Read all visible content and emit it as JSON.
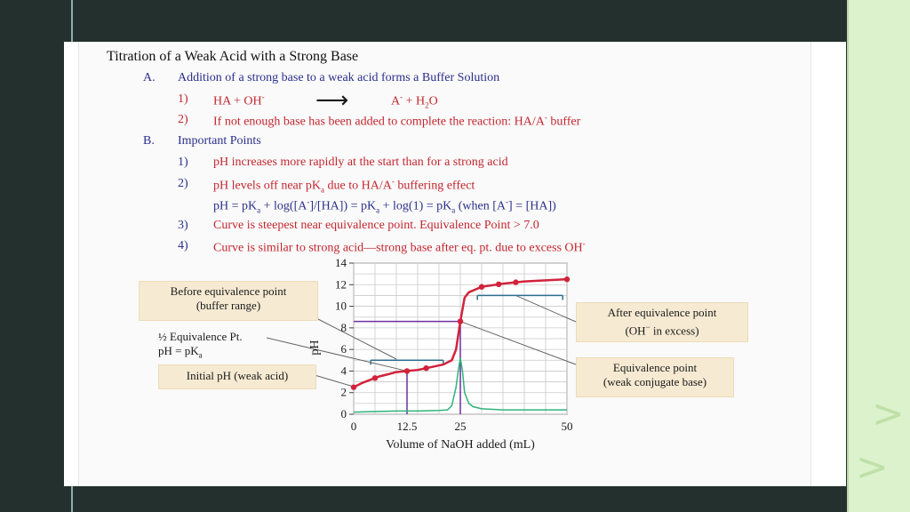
{
  "slide": {
    "accent_dark": "#24302e",
    "accent_light": "#dcf2cc"
  },
  "document": {
    "title": "Titration of a Weak Acid with a Strong Base",
    "section_a": {
      "marker": "A.",
      "heading": "Addition of a strong base to a weak acid forms a Buffer Solution",
      "item1": {
        "num": "1)",
        "lhs": "HA  +  OH",
        "lhs_sup": "-",
        "arrow": "⟶",
        "rhs": "A",
        "rhs_sup": "-",
        "rhs_tail": " +  H",
        "rhs_sub": "2",
        "rhs_end": "O"
      },
      "item2": {
        "num": "2)",
        "text": "If not enough base has been added to complete the reaction: HA/A",
        "sup": "-",
        "tail": " buffer"
      }
    },
    "section_b": {
      "marker": "B.",
      "heading": "Important Points",
      "item1": {
        "num": "1)",
        "text": "pH increases more rapidly at the start than for a strong acid"
      },
      "item2": {
        "num": "2)",
        "text_a": "pH levels off near pK",
        "sub_a": "a",
        "text_b": " due to HA/A",
        "sup_b": "-",
        "text_c": " buffering effect"
      },
      "equation": {
        "p1": "pH = pK",
        "s1": "a",
        "p2": " + log([A",
        "sup2": "-",
        "p3": "]/[HA])  =  pK",
        "s3": "a",
        "p4": " + log(1)  =  pK",
        "s4": "a",
        "p5": "  (when [A",
        "sup5": "-",
        "p6": "] = [HA])"
      },
      "item3": {
        "num": "3)",
        "text": "Curve is steepest near equivalence point.  Equivalence Point > 7.0"
      },
      "item4": {
        "num": "4)",
        "text": "Curve is similar to strong acid—strong base after eq. pt. due to excess OH",
        "sup": "-"
      }
    }
  },
  "annotations": {
    "before_eq_line1": "Before equivalence point",
    "before_eq_line2": "(buffer range)",
    "half_eq_line1": "½ Equivalence Pt.",
    "half_eq_line2": "pH = pK",
    "half_eq_sub": "a",
    "initial_ph": "Initial pH (weak acid)",
    "after_eq_line1": "After equivalence point",
    "after_eq_line2": "(OH",
    "after_eq_sup": "−",
    "after_eq_line2_tail": " in excess)",
    "eq_point_line1": "Equivalence point",
    "eq_point_line2": "(weak conjugate base)"
  },
  "chart_data": {
    "type": "line",
    "xlabel": "Volume of NaOH added (mL)",
    "ylabel": "pH",
    "xlim": [
      0,
      50
    ],
    "ylim": [
      0,
      14
    ],
    "x_ticks": [
      "0",
      "12.5",
      "25",
      "50"
    ],
    "x_tick_values": [
      0,
      12.5,
      25,
      50
    ],
    "y_ticks": [
      "0",
      "2",
      "4",
      "6",
      "8",
      "10",
      "12",
      "14"
    ],
    "y_tick_values": [
      0,
      2,
      4,
      6,
      8,
      10,
      12,
      14
    ],
    "grid": true,
    "series": [
      {
        "values_x": [
          0,
          2,
          4,
          6,
          8,
          10,
          12.5,
          15,
          18,
          21,
          23,
          24,
          25,
          26,
          27,
          30,
          35,
          40,
          45,
          50
        ],
        "values_y": [
          2.5,
          2.9,
          3.2,
          3.5,
          3.7,
          3.9,
          4.0,
          4.1,
          4.35,
          4.6,
          5.0,
          6.0,
          8.6,
          10.8,
          11.3,
          11.8,
          12.1,
          12.3,
          12.4,
          12.5
        ],
        "marker_points_x": [
          0,
          5,
          12.5,
          17,
          25,
          30,
          34,
          38,
          50
        ],
        "color": "#d2233c"
      },
      {
        "values_x": [
          0,
          5,
          10,
          15,
          20,
          22,
          23,
          24,
          24.5,
          25,
          25.5,
          26,
          27,
          28,
          30,
          35,
          40,
          45,
          50
        ],
        "values_y": [
          0.2,
          0.25,
          0.3,
          0.3,
          0.35,
          0.4,
          0.8,
          2.5,
          4.0,
          5.2,
          4.0,
          2.0,
          1.0,
          0.7,
          0.5,
          0.4,
          0.4,
          0.4,
          0.4
        ],
        "color": "#2fb37a"
      }
    ],
    "reference_lines": {
      "half_eq_ph": 4.0,
      "eq_ph": 8.6,
      "buffer_range_ph": 5.0,
      "excess_ph": 11.0
    },
    "colors": {
      "guide": "#6b2fa0",
      "bracket": "#2c6e8f",
      "leader": "#666666"
    }
  }
}
